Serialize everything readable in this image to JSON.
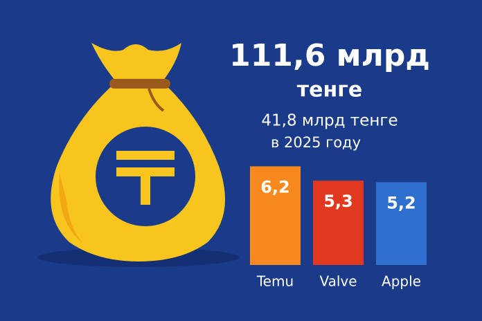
{
  "chart_data": {
    "type": "bar",
    "title": "111,6 млрд",
    "subtitle": "тенге",
    "annotations": [
      "41,8 млрд тенге",
      "в 2025 году"
    ],
    "categories": [
      "Temu",
      "Valve",
      "Apple"
    ],
    "values": [
      6.2,
      5.3,
      5.2
    ],
    "value_labels": [
      "6,2",
      "5,3",
      "5,2"
    ],
    "colors": [
      "#f7891e",
      "#e0391f",
      "#2f6fd0"
    ]
  }
}
